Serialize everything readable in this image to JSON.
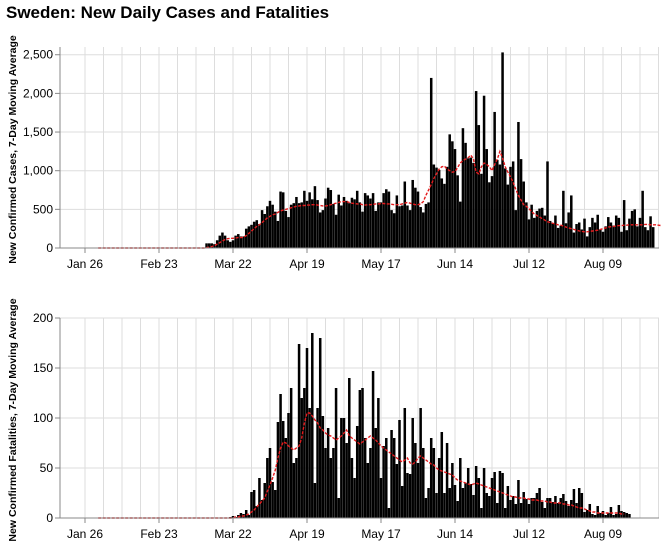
{
  "title": "Sweden: New Daily Cases and Fatalities",
  "colors": {
    "bars": "#000000",
    "line": "#e41a1c",
    "grid": "#dddddd",
    "axis": "#888888"
  },
  "chart_data": [
    {
      "type": "bar",
      "ylabel": "New Confirmed Cases, 7-Day Moving Average",
      "ylim": [
        0,
        2600
      ],
      "y_ticks": [
        0,
        500,
        1000,
        1500,
        2000,
        2500
      ],
      "y_tick_labels": [
        "0",
        "500",
        "1,000",
        "1,500",
        "2,000",
        "2,500"
      ],
      "x_ticks": [
        "2020-01-26",
        "2020-02-23",
        "2020-03-22",
        "2020-04-19",
        "2020-05-17",
        "2020-06-14",
        "2020-07-12",
        "2020-08-09"
      ],
      "x_tick_labels": [
        "Jan 26",
        "Feb 23",
        "Mar 22",
        "Apr 19",
        "May 17",
        "Jun 14",
        "Jul 12",
        "Aug 09"
      ],
      "grid": true,
      "series": [
        {
          "kind": "bar",
          "x_start": "2020-01-31",
          "values": [
            0,
            0,
            0,
            0,
            0,
            0,
            0,
            0,
            0,
            0,
            0,
            0,
            0,
            0,
            0,
            0,
            0,
            0,
            0,
            0,
            0,
            0,
            0,
            0,
            0,
            0,
            0,
            0,
            0,
            0,
            0,
            0,
            0,
            0,
            0,
            0,
            0,
            0,
            0,
            0,
            0,
            60,
            60,
            60,
            50,
            100,
            160,
            200,
            160,
            100,
            80,
            100,
            160,
            180,
            150,
            150,
            250,
            280,
            300,
            340,
            360,
            310,
            490,
            440,
            540,
            610,
            560,
            470,
            350,
            730,
            720,
            480,
            400,
            560,
            580,
            660,
            580,
            590,
            740,
            610,
            720,
            630,
            800,
            620,
            460,
            490,
            640,
            780,
            750,
            570,
            430,
            690,
            550,
            660,
            610,
            580,
            650,
            630,
            740,
            590,
            470,
            710,
            680,
            640,
            710,
            480,
            590,
            590,
            710,
            760,
            730,
            490,
            450,
            680,
            540,
            550,
            860,
            550,
            490,
            880,
            780,
            730,
            530,
            460,
            570,
            590,
            2200,
            1080,
            1040,
            1010,
            900,
            830,
            1050,
            1470,
            1380,
            1280,
            940,
            600,
            1550,
            1360,
            1160,
            1170,
            1100,
            2030,
            1590,
            960,
            1970,
            1280,
            850,
            930,
            1760,
            1140,
            1080,
            2530,
            1030,
            820,
            1050,
            1120,
            490,
            1630,
            1150,
            860,
            590,
            370,
            560,
            390,
            480,
            510,
            520,
            420,
            1120,
            350,
            320,
            420,
            260,
            290,
            740,
            320,
            460,
            680,
            200,
            310,
            330,
            240,
            380,
            150,
            270,
            390,
            330,
            430,
            240,
            210,
            280,
            400,
            330,
            290,
            420,
            390,
            210,
            620,
            230,
            380,
            480,
            500,
            280,
            390,
            740,
            270,
            230,
            410,
            270
          ]
        },
        {
          "kind": "line",
          "name": "7-Day Moving Average",
          "x_start": "2020-01-31",
          "values": [
            0,
            0,
            0,
            0,
            0,
            0,
            0,
            0,
            0,
            0,
            0,
            0,
            0,
            0,
            0,
            0,
            0,
            0,
            0,
            0,
            0,
            0,
            0,
            0,
            0,
            0,
            0,
            0,
            0,
            0,
            0,
            0,
            0,
            0,
            0,
            0,
            0,
            0,
            0,
            0,
            0,
            5,
            10,
            20,
            30,
            50,
            70,
            90,
            110,
            120,
            125,
            125,
            130,
            135,
            135,
            140,
            160,
            190,
            220,
            250,
            280,
            300,
            330,
            360,
            390,
            410,
            430,
            440,
            460,
            480,
            490,
            500,
            510,
            520,
            530,
            540,
            545,
            550,
            550,
            555,
            555,
            560,
            560,
            555,
            550,
            545,
            545,
            550,
            560,
            570,
            580,
            590,
            600,
            600,
            600,
            590,
            580,
            575,
            570,
            570,
            560,
            555,
            560,
            560,
            565,
            570,
            570,
            575,
            575,
            570,
            570,
            565,
            560,
            560,
            560,
            570,
            580,
            590,
            580,
            570,
            560,
            560,
            570,
            600,
            680,
            750,
            820,
            900,
            960,
            1020,
            1050,
            1060,
            1020,
            1000,
            980,
            990,
            1040,
            1100,
            1130,
            1150,
            1170,
            1200,
            1150,
            980,
            960,
            1050,
            1100,
            1080,
            1050,
            1000,
            1080,
            1150,
            1250,
            1160,
            1050,
            980,
            920,
            850,
            760,
            680,
            620,
            560,
            540,
            510,
            470,
            440,
            420,
            400,
            380,
            360,
            340,
            330,
            320,
            310,
            300,
            295,
            285,
            270,
            260,
            250,
            240,
            230,
            220,
            215,
            210,
            210,
            215,
            220,
            225,
            230,
            240,
            250,
            260,
            270,
            275,
            280,
            285,
            290,
            290,
            295,
            295,
            300,
            300,
            300,
            300,
            300,
            300,
            305,
            305,
            300,
            300,
            300,
            295,
            290
          ]
        }
      ]
    },
    {
      "type": "bar",
      "ylabel": "New Confirmed Fatalities, 7-Day Moving Average",
      "ylim": [
        0,
        200
      ],
      "y_ticks": [
        0,
        50,
        100,
        150,
        200
      ],
      "y_tick_labels": [
        "0",
        "50",
        "100",
        "150",
        "200"
      ],
      "x_ticks": [
        "2020-01-26",
        "2020-02-23",
        "2020-03-22",
        "2020-04-19",
        "2020-05-17",
        "2020-06-14",
        "2020-07-12",
        "2020-08-09"
      ],
      "x_tick_labels": [
        "Jan 26",
        "Feb 23",
        "Mar 22",
        "Apr 19",
        "May 17",
        "Jun 14",
        "Jul 12",
        "Aug 09"
      ],
      "grid": true,
      "series": [
        {
          "kind": "bar",
          "x_start": "2020-01-31",
          "values": [
            0,
            0,
            0,
            0,
            0,
            0,
            0,
            0,
            0,
            0,
            0,
            0,
            0,
            0,
            0,
            0,
            0,
            0,
            0,
            0,
            0,
            0,
            0,
            0,
            0,
            0,
            0,
            0,
            0,
            0,
            0,
            0,
            0,
            0,
            0,
            0,
            0,
            0,
            0,
            0,
            0,
            0,
            0,
            0,
            0,
            0,
            0,
            0,
            0,
            0,
            1,
            2,
            1,
            3,
            5,
            4,
            8,
            3,
            26,
            28,
            12,
            40,
            18,
            35,
            60,
            70,
            36,
            28,
            96,
            124,
            97,
            80,
            105,
            130,
            55,
            60,
            174,
            120,
            130,
            170,
            110,
            185,
            35,
            110,
            180,
            102,
            70,
            90,
            60,
            70,
            130,
            20,
            100,
            100,
            75,
            140,
            60,
            40,
            92,
            128,
            130,
            80,
            55,
            70,
            147,
            90,
            120,
            40,
            72,
            80,
            10,
            88,
            80,
            54,
            98,
            32,
            110,
            45,
            44,
            100,
            75,
            55,
            110,
            70,
            20,
            30,
            80,
            70,
            25,
            60,
            86,
            25,
            75,
            30,
            55,
            33,
            17,
            60,
            30,
            35,
            50,
            34,
            23,
            52,
            40,
            10,
            50,
            25,
            22,
            40,
            46,
            15,
            47,
            45,
            10,
            32,
            18,
            22,
            14,
            38,
            15,
            26,
            19,
            14,
            20,
            20,
            25,
            30,
            16,
            10,
            20,
            20,
            16,
            22,
            15,
            20,
            24,
            17,
            12,
            18,
            29,
            15,
            30,
            25,
            6,
            8,
            14,
            4,
            3,
            12,
            5,
            7,
            3,
            5,
            11,
            3,
            4,
            13,
            7,
            6,
            5,
            4
          ]
        },
        {
          "kind": "line",
          "name": "7-Day Moving Average",
          "x_start": "2020-01-31",
          "values": [
            0,
            0,
            0,
            0,
            0,
            0,
            0,
            0,
            0,
            0,
            0,
            0,
            0,
            0,
            0,
            0,
            0,
            0,
            0,
            0,
            0,
            0,
            0,
            0,
            0,
            0,
            0,
            0,
            0,
            0,
            0,
            0,
            0,
            0,
            0,
            0,
            0,
            0,
            0,
            0,
            0,
            0,
            0,
            0,
            0,
            0,
            0,
            0,
            0,
            0,
            0,
            0,
            1,
            1,
            2,
            2,
            3,
            4,
            6,
            8,
            11,
            14,
            17,
            20,
            27,
            33,
            40,
            48,
            60,
            70,
            76,
            75,
            72,
            70,
            68,
            70,
            72,
            80,
            95,
            105,
            105,
            102,
            98,
            95,
            90,
            88,
            85,
            83,
            82,
            80,
            78,
            80,
            82,
            85,
            88,
            82,
            80,
            78,
            76,
            74,
            76,
            78,
            80,
            82,
            80,
            78,
            75,
            72,
            70,
            68,
            66,
            64,
            62,
            60,
            58,
            56,
            58,
            60,
            55,
            54,
            56,
            60,
            62,
            60,
            58,
            56,
            54,
            53,
            50,
            48,
            47,
            46,
            45,
            44,
            43,
            40,
            38,
            37,
            36,
            35,
            34,
            33,
            34,
            35,
            34,
            33,
            32,
            31,
            30,
            29,
            28,
            27,
            26,
            25,
            24,
            23,
            22,
            21,
            21,
            20,
            20,
            20,
            19,
            19,
            18,
            18,
            18,
            17,
            17,
            17,
            16,
            16,
            15,
            15,
            15,
            15,
            14,
            14,
            13,
            13,
            12,
            11,
            10,
            10,
            9,
            8,
            7,
            6,
            6,
            5,
            5,
            5,
            5,
            5,
            5,
            5,
            5,
            5,
            4,
            4
          ]
        }
      ]
    }
  ]
}
